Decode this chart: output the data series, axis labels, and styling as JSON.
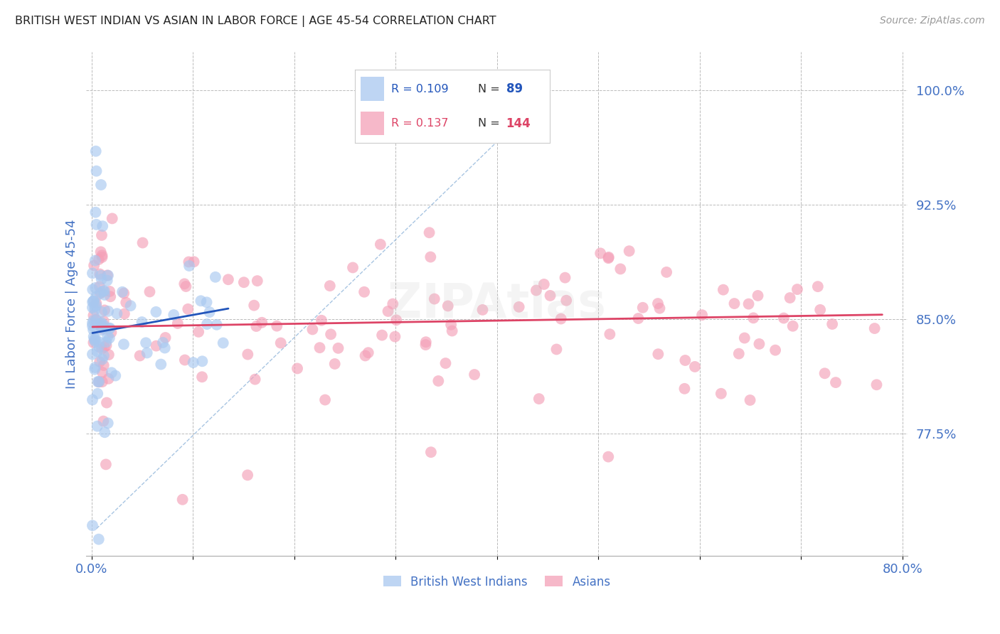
{
  "title": "BRITISH WEST INDIAN VS ASIAN IN LABOR FORCE | AGE 45-54 CORRELATION CHART",
  "source": "Source: ZipAtlas.com",
  "ylabel": "In Labor Force | Age 45-54",
  "xlim": [
    -0.005,
    0.805
  ],
  "ylim": [
    0.695,
    1.025
  ],
  "yticks": [
    0.775,
    0.85,
    0.925,
    1.0
  ],
  "ytick_labels": [
    "77.5%",
    "85.0%",
    "92.5%",
    "100.0%"
  ],
  "xticks": [
    0.0,
    0.1,
    0.2,
    0.3,
    0.4,
    0.5,
    0.6,
    0.7,
    0.8
  ],
  "xtick_labels": [
    "0.0%",
    "",
    "",
    "",
    "",
    "",
    "",
    "",
    "80.0%"
  ],
  "blue_R": 0.109,
  "blue_N": 89,
  "pink_R": 0.137,
  "pink_N": 144,
  "legend_label_blue": "British West Indians",
  "legend_label_pink": "Asians",
  "blue_color": "#A8C8F0",
  "pink_color": "#F4A0B8",
  "blue_line_color": "#2255BB",
  "pink_line_color": "#DD4466",
  "watermark": "ZIPAtlas",
  "title_color": "#222222",
  "axis_label_color": "#4472C4",
  "tick_label_color": "#4472C4",
  "background_color": "#FFFFFF",
  "grid_color": "#BBBBBB"
}
